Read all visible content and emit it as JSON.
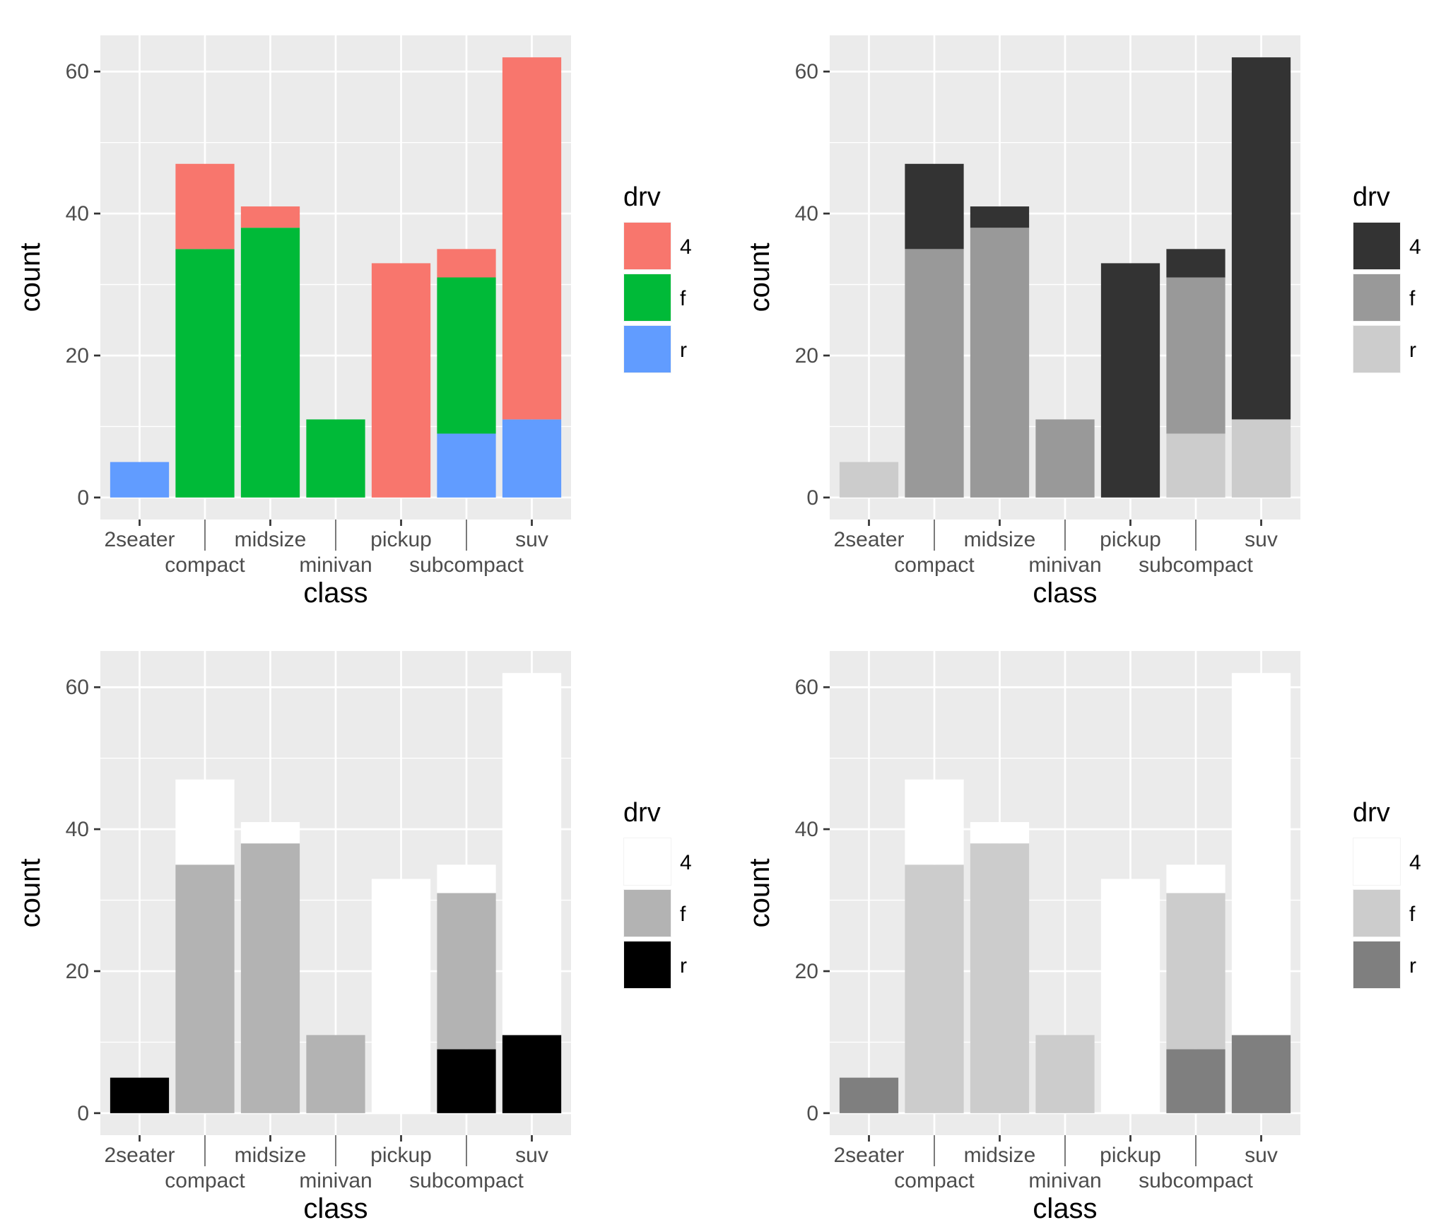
{
  "chart_data": [
    {
      "type": "bar",
      "stacked": true,
      "title": "",
      "xlabel": "class",
      "ylabel": "count",
      "ylim": [
        0,
        62
      ],
      "yticks": [
        "0",
        "20",
        "40",
        "60"
      ],
      "categories": [
        "2seater",
        "compact",
        "midsize",
        "minivan",
        "pickup",
        "subcompact",
        "suv"
      ],
      "legend": {
        "title": "drv",
        "position": "right",
        "entries": [
          "4",
          "f",
          "r"
        ]
      },
      "series": [
        {
          "name": "4",
          "color": "#F8766D",
          "values": [
            0,
            12,
            3,
            0,
            33,
            4,
            51
          ]
        },
        {
          "name": "f",
          "color": "#00BA38",
          "values": [
            0,
            35,
            38,
            11,
            0,
            22,
            0
          ]
        },
        {
          "name": "r",
          "color": "#619CFF",
          "values": [
            5,
            0,
            0,
            0,
            0,
            9,
            11
          ]
        }
      ]
    },
    {
      "type": "bar",
      "stacked": true,
      "title": "",
      "xlabel": "class",
      "ylabel": "count",
      "ylim": [
        0,
        62
      ],
      "yticks": [
        "0",
        "20",
        "40",
        "60"
      ],
      "categories": [
        "2seater",
        "compact",
        "midsize",
        "minivan",
        "pickup",
        "subcompact",
        "suv"
      ],
      "legend": {
        "title": "drv",
        "position": "right",
        "entries": [
          "4",
          "f",
          "r"
        ]
      },
      "series": [
        {
          "name": "4",
          "color": "#333333",
          "values": [
            0,
            12,
            3,
            0,
            33,
            4,
            51
          ]
        },
        {
          "name": "f",
          "color": "#999999",
          "values": [
            0,
            35,
            38,
            11,
            0,
            22,
            0
          ]
        },
        {
          "name": "r",
          "color": "#CCCCCC",
          "values": [
            5,
            0,
            0,
            0,
            0,
            9,
            11
          ]
        }
      ]
    },
    {
      "type": "bar",
      "stacked": true,
      "title": "",
      "xlabel": "class",
      "ylabel": "count",
      "ylim": [
        0,
        62
      ],
      "yticks": [
        "0",
        "20",
        "40",
        "60"
      ],
      "categories": [
        "2seater",
        "compact",
        "midsize",
        "minivan",
        "pickup",
        "subcompact",
        "suv"
      ],
      "legend": {
        "title": "drv",
        "position": "right",
        "entries": [
          "4",
          "f",
          "r"
        ]
      },
      "series": [
        {
          "name": "4",
          "color": "#FFFFFF",
          "values": [
            0,
            12,
            3,
            0,
            33,
            4,
            51
          ]
        },
        {
          "name": "f",
          "color": "#B3B3B3",
          "values": [
            0,
            35,
            38,
            11,
            0,
            22,
            0
          ]
        },
        {
          "name": "r",
          "color": "#000000",
          "values": [
            5,
            0,
            0,
            0,
            0,
            9,
            11
          ]
        }
      ]
    },
    {
      "type": "bar",
      "stacked": true,
      "title": "",
      "xlabel": "class",
      "ylabel": "count",
      "ylim": [
        0,
        62
      ],
      "yticks": [
        "0",
        "20",
        "40",
        "60"
      ],
      "categories": [
        "2seater",
        "compact",
        "midsize",
        "minivan",
        "pickup",
        "subcompact",
        "suv"
      ],
      "legend": {
        "title": "drv",
        "position": "right",
        "entries": [
          "4",
          "f",
          "r"
        ]
      },
      "series": [
        {
          "name": "4",
          "color": "#FFFFFF",
          "values": [
            0,
            12,
            3,
            0,
            33,
            4,
            51
          ]
        },
        {
          "name": "f",
          "color": "#CCCCCC",
          "values": [
            0,
            35,
            38,
            11,
            0,
            22,
            0
          ]
        },
        {
          "name": "r",
          "color": "#7F7F7F",
          "values": [
            5,
            0,
            0,
            0,
            0,
            9,
            11
          ]
        }
      ]
    }
  ]
}
